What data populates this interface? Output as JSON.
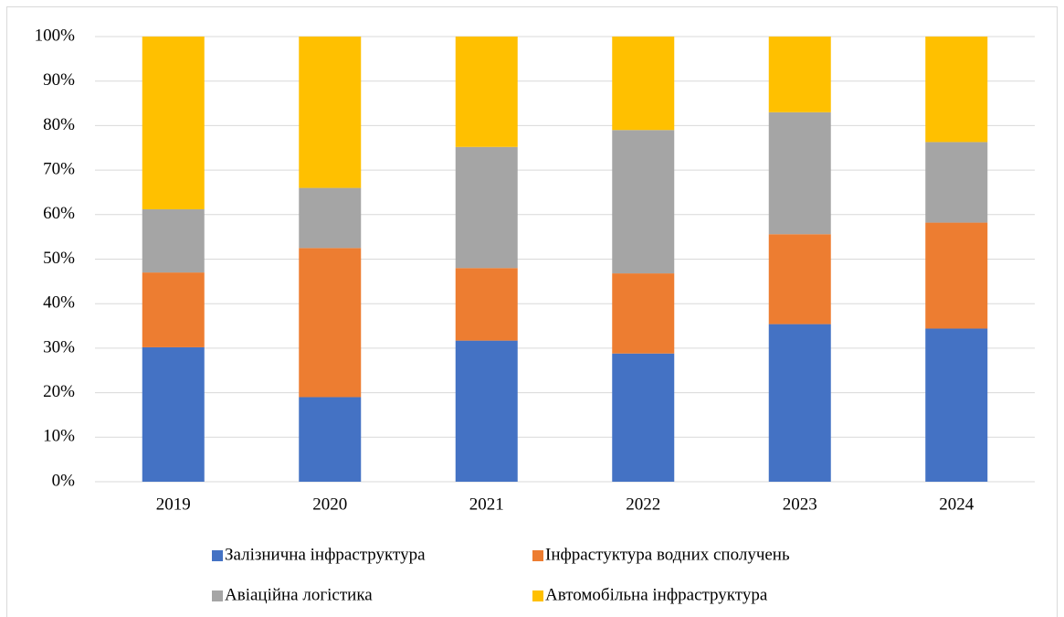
{
  "chart_data": {
    "type": "bar",
    "stacked": true,
    "categories": [
      "2019",
      "2020",
      "2021",
      "2022",
      "2023",
      "2024"
    ],
    "series": [
      {
        "name": "Залізнична інфраструктура",
        "color": "#4472c4",
        "values": [
          30.2,
          19,
          31.7,
          28.8,
          35.4,
          34.4
        ]
      },
      {
        "name": "Інфрастуктура водних сполучень",
        "color": "#ed7d31",
        "values": [
          16.8,
          33.5,
          16.3,
          18,
          20.2,
          23.8
        ]
      },
      {
        "name": "Авіаційна логістика",
        "color": "#a5a5a5",
        "values": [
          14.2,
          13.5,
          27.2,
          32.2,
          27.4,
          18.1
        ]
      },
      {
        "name": "Автомобільна інфраструктура",
        "color": "#ffc000",
        "values": [
          38.8,
          34,
          24.8,
          21,
          17,
          23.7
        ]
      }
    ],
    "ylim": [
      0,
      100
    ],
    "yticks": [
      {
        "value": 0,
        "label": "0%"
      },
      {
        "value": 10,
        "label": "10%"
      },
      {
        "value": 20,
        "label": "20%"
      },
      {
        "value": 30,
        "label": "30%"
      },
      {
        "value": 40,
        "label": "40%"
      },
      {
        "value": 50,
        "label": "50%"
      },
      {
        "value": 60,
        "label": "60%"
      },
      {
        "value": 70,
        "label": "70%"
      },
      {
        "value": 80,
        "label": "80%"
      },
      {
        "value": 90,
        "label": "90%"
      },
      {
        "value": 100,
        "label": "100%"
      }
    ],
    "grid": true,
    "legend": "bottom"
  }
}
